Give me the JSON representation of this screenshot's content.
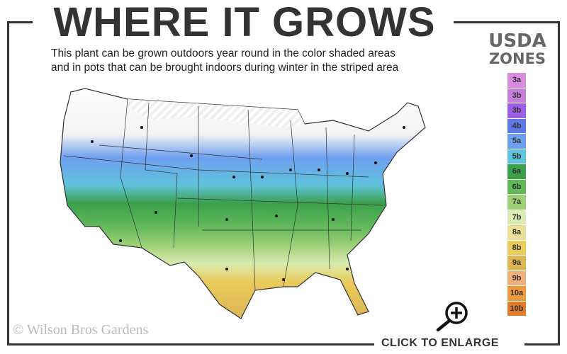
{
  "header": {
    "title": "WHERE IT GROWS",
    "subtitle_line1": "This plant can be grown outdoors year round in the color shaded areas",
    "subtitle_line2": "and in pots that can be brought indoors during winter in the striped area"
  },
  "legend": {
    "title_line1": "USDA",
    "title_line2": "ZONES",
    "zones": [
      {
        "label": "3a",
        "color": "#d98be0"
      },
      {
        "label": "3b",
        "color": "#c57fd9"
      },
      {
        "label": "3b",
        "color": "#9d5fe6"
      },
      {
        "label": "4b",
        "color": "#5a78e6"
      },
      {
        "label": "5a",
        "color": "#6f9ff0"
      },
      {
        "label": "5b",
        "color": "#5ec3dc"
      },
      {
        "label": "6a",
        "color": "#3aa04a"
      },
      {
        "label": "6b",
        "color": "#62b95a"
      },
      {
        "label": "7a",
        "color": "#9dd077"
      },
      {
        "label": "7b",
        "color": "#d9ebb0"
      },
      {
        "label": "8a",
        "color": "#ecdf98"
      },
      {
        "label": "8b",
        "color": "#e9cc5c"
      },
      {
        "label": "9a",
        "color": "#dcb555"
      },
      {
        "label": "9b",
        "color": "#efb07a"
      },
      {
        "label": "10a",
        "color": "#ec9a3c"
      },
      {
        "label": "10b",
        "color": "#e07c2c"
      }
    ]
  },
  "map": {
    "icon": "usda-zone-map"
  },
  "footer": {
    "copyright": "© Wilson Bros Gardens",
    "enlarge_label": "CLICK TO ENLARGE",
    "enlarge_icon": "zoom-in-icon"
  }
}
